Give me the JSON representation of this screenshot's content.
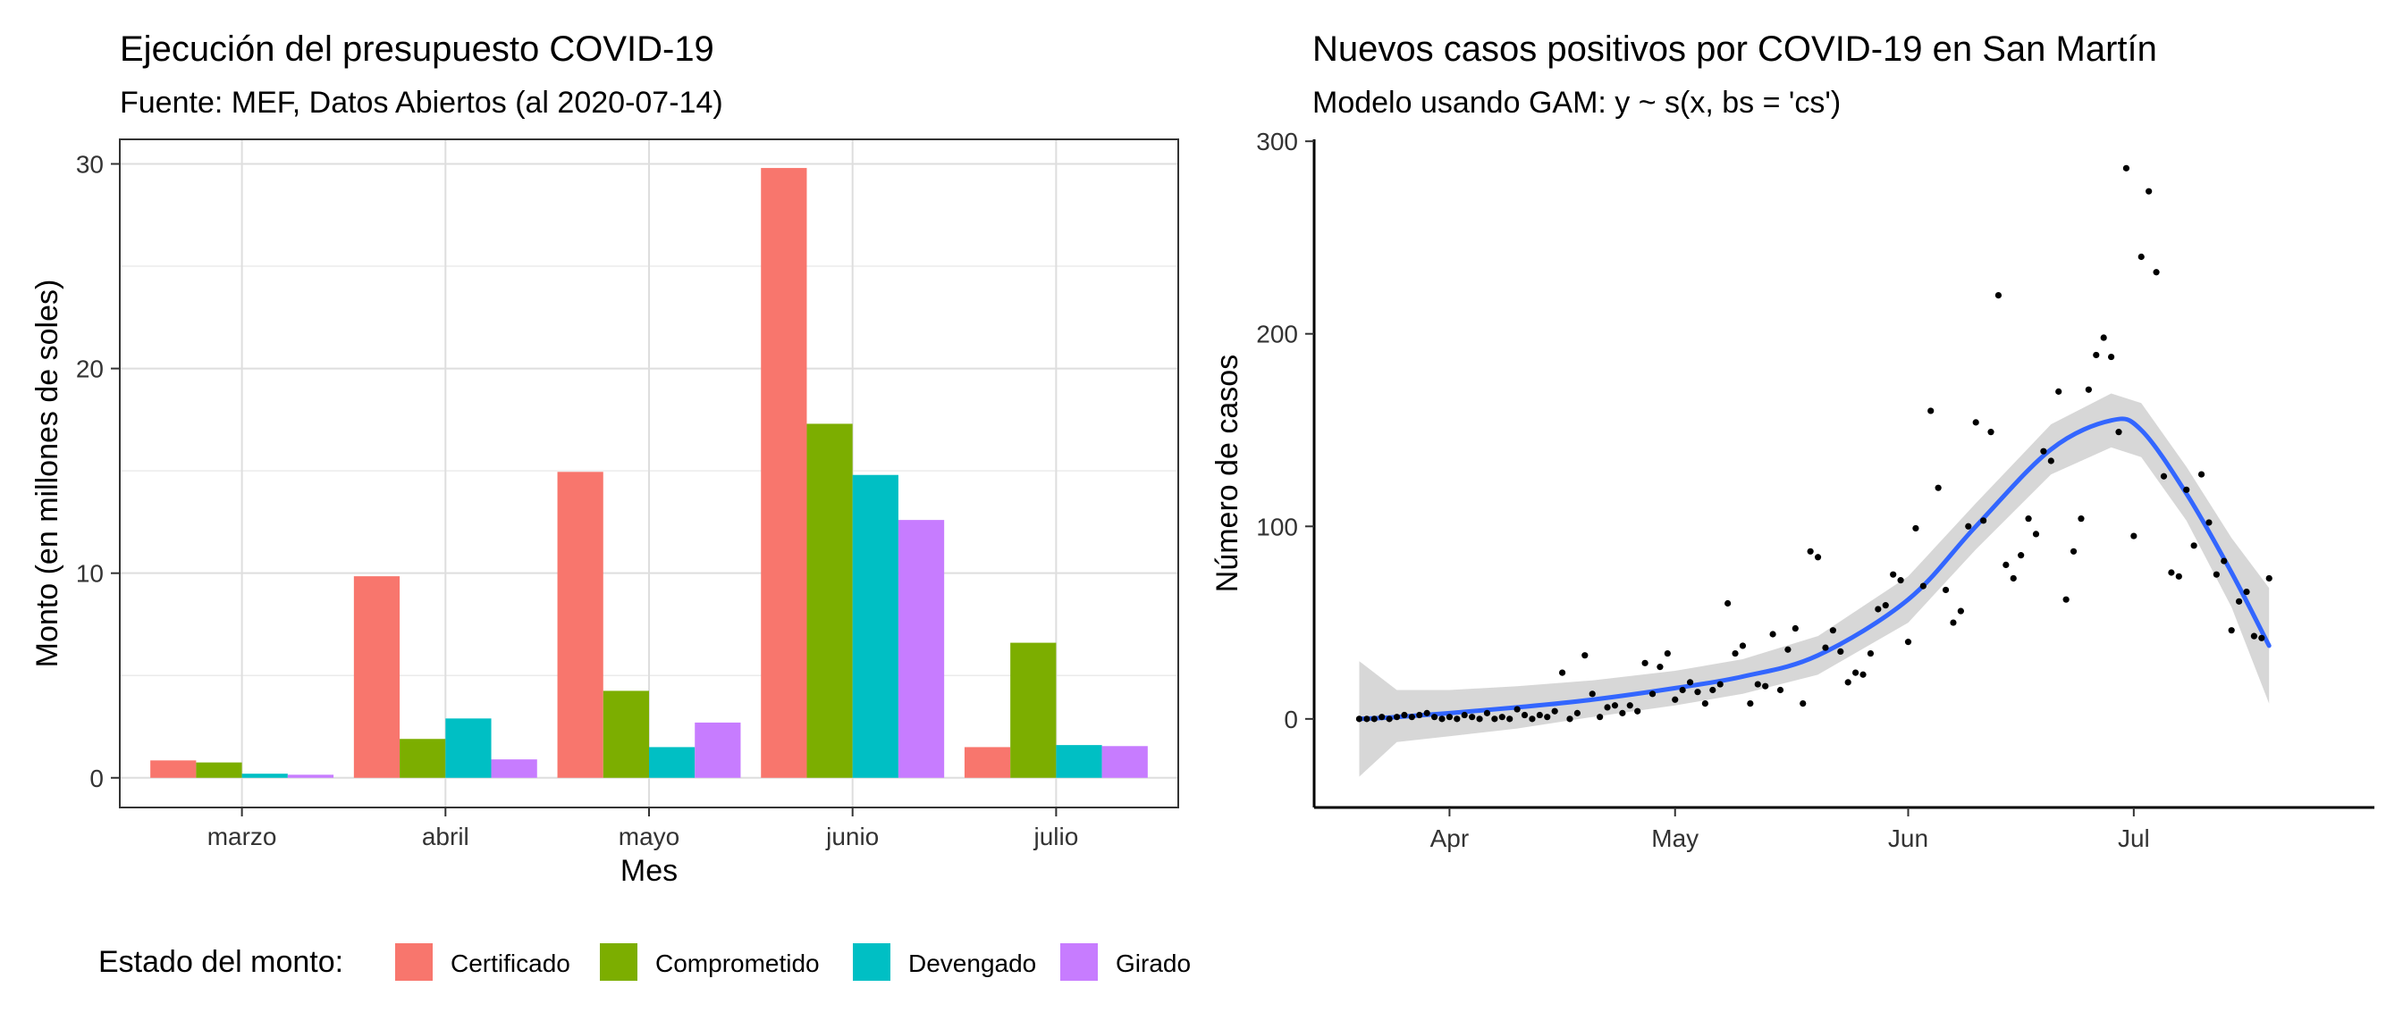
{
  "chart_data": [
    {
      "type": "bar",
      "title": "Ejecución del presupuesto COVID-19",
      "subtitle": "Fuente: MEF, Datos Abiertos (al 2020-07-14)",
      "xlabel": "Mes",
      "ylabel": "Monto (en millones de soles)",
      "categories": [
        "marzo",
        "abril",
        "mayo",
        "junio",
        "julio"
      ],
      "series": [
        {
          "name": "Certificado",
          "color": "#F8766D",
          "values": [
            0.85,
            9.85,
            14.95,
            29.8,
            1.5
          ]
        },
        {
          "name": "Comprometido",
          "color": "#7CAE00",
          "values": [
            0.75,
            1.9,
            4.25,
            17.3,
            6.6
          ]
        },
        {
          "name": "Devengado",
          "color": "#00BFC4",
          "values": [
            0.2,
            2.9,
            1.5,
            14.8,
            1.6
          ]
        },
        {
          "name": "Girado",
          "color": "#C77CFF",
          "values": [
            0.15,
            0.9,
            2.7,
            12.6,
            1.55
          ]
        }
      ],
      "ylim": [
        -1.45,
        31.2
      ],
      "yticks": [
        0,
        10,
        20,
        30
      ],
      "grid": true,
      "legend_position": "bottom",
      "legend_title": "Estado del monto:"
    },
    {
      "type": "scatter",
      "title": "Nuevos casos positivos por COVID-19 en San Martín",
      "subtitle": "Modelo usando GAM: y ~ s(x, bs = 'cs')",
      "xlabel": "",
      "ylabel": "Número de casos",
      "x_tick_labels": [
        "Apr",
        "May",
        "Jun",
        "Jul"
      ],
      "x_tick_dates": [
        "2020-04-01",
        "2020-05-01",
        "2020-06-01",
        "2020-07-01"
      ],
      "xlim": [
        "2020-03-14",
        "2020-08-02"
      ],
      "ylim": [
        -46,
        301
      ],
      "yticks": [
        0,
        100,
        200,
        300
      ],
      "grid": false,
      "points": [
        {
          "x": "2020-03-20",
          "y": 0
        },
        {
          "x": "2020-03-21",
          "y": 0
        },
        {
          "x": "2020-03-22",
          "y": 0
        },
        {
          "x": "2020-03-23",
          "y": 1
        },
        {
          "x": "2020-03-24",
          "y": 0
        },
        {
          "x": "2020-03-25",
          "y": 1
        },
        {
          "x": "2020-03-26",
          "y": 2
        },
        {
          "x": "2020-03-27",
          "y": 1
        },
        {
          "x": "2020-03-28",
          "y": 2
        },
        {
          "x": "2020-03-29",
          "y": 3
        },
        {
          "x": "2020-03-30",
          "y": 1
        },
        {
          "x": "2020-03-31",
          "y": 0
        },
        {
          "x": "2020-04-01",
          "y": 1
        },
        {
          "x": "2020-04-02",
          "y": 0
        },
        {
          "x": "2020-04-03",
          "y": 2
        },
        {
          "x": "2020-04-04",
          "y": 1
        },
        {
          "x": "2020-04-05",
          "y": 0
        },
        {
          "x": "2020-04-06",
          "y": 3
        },
        {
          "x": "2020-04-07",
          "y": 0
        },
        {
          "x": "2020-04-08",
          "y": 1
        },
        {
          "x": "2020-04-09",
          "y": 0
        },
        {
          "x": "2020-04-10",
          "y": 5
        },
        {
          "x": "2020-04-11",
          "y": 2
        },
        {
          "x": "2020-04-12",
          "y": 0
        },
        {
          "x": "2020-04-13",
          "y": 2
        },
        {
          "x": "2020-04-14",
          "y": 1
        },
        {
          "x": "2020-04-15",
          "y": 4
        },
        {
          "x": "2020-04-16",
          "y": 24
        },
        {
          "x": "2020-04-17",
          "y": 0
        },
        {
          "x": "2020-04-18",
          "y": 3
        },
        {
          "x": "2020-04-19",
          "y": 33
        },
        {
          "x": "2020-04-20",
          "y": 13
        },
        {
          "x": "2020-04-21",
          "y": 1
        },
        {
          "x": "2020-04-22",
          "y": 6
        },
        {
          "x": "2020-04-23",
          "y": 7
        },
        {
          "x": "2020-04-24",
          "y": 3
        },
        {
          "x": "2020-04-25",
          "y": 7
        },
        {
          "x": "2020-04-26",
          "y": 4
        },
        {
          "x": "2020-04-27",
          "y": 29
        },
        {
          "x": "2020-04-28",
          "y": 13
        },
        {
          "x": "2020-04-29",
          "y": 27
        },
        {
          "x": "2020-04-30",
          "y": 34
        },
        {
          "x": "2020-05-01",
          "y": 10
        },
        {
          "x": "2020-05-02",
          "y": 15
        },
        {
          "x": "2020-05-03",
          "y": 19
        },
        {
          "x": "2020-05-04",
          "y": 14
        },
        {
          "x": "2020-05-05",
          "y": 8
        },
        {
          "x": "2020-05-06",
          "y": 15
        },
        {
          "x": "2020-05-07",
          "y": 18
        },
        {
          "x": "2020-05-08",
          "y": 60
        },
        {
          "x": "2020-05-09",
          "y": 34
        },
        {
          "x": "2020-05-10",
          "y": 38
        },
        {
          "x": "2020-05-11",
          "y": 8
        },
        {
          "x": "2020-05-12",
          "y": 18
        },
        {
          "x": "2020-05-13",
          "y": 17
        },
        {
          "x": "2020-05-14",
          "y": 44
        },
        {
          "x": "2020-05-15",
          "y": 15
        },
        {
          "x": "2020-05-16",
          "y": 36
        },
        {
          "x": "2020-05-17",
          "y": 47
        },
        {
          "x": "2020-05-18",
          "y": 8
        },
        {
          "x": "2020-05-19",
          "y": 87
        },
        {
          "x": "2020-05-20",
          "y": 84
        },
        {
          "x": "2020-05-21",
          "y": 37
        },
        {
          "x": "2020-05-22",
          "y": 46
        },
        {
          "x": "2020-05-23",
          "y": 35
        },
        {
          "x": "2020-05-24",
          "y": 19
        },
        {
          "x": "2020-05-25",
          "y": 24
        },
        {
          "x": "2020-05-26",
          "y": 23
        },
        {
          "x": "2020-05-27",
          "y": 34
        },
        {
          "x": "2020-05-28",
          "y": 57
        },
        {
          "x": "2020-05-29",
          "y": 59
        },
        {
          "x": "2020-05-30",
          "y": 75
        },
        {
          "x": "2020-05-31",
          "y": 72
        },
        {
          "x": "2020-06-01",
          "y": 40
        },
        {
          "x": "2020-06-02",
          "y": 99
        },
        {
          "x": "2020-06-03",
          "y": 69
        },
        {
          "x": "2020-06-04",
          "y": 160
        },
        {
          "x": "2020-06-05",
          "y": 120
        },
        {
          "x": "2020-06-06",
          "y": 67
        },
        {
          "x": "2020-06-07",
          "y": 50
        },
        {
          "x": "2020-06-08",
          "y": 56
        },
        {
          "x": "2020-06-09",
          "y": 100
        },
        {
          "x": "2020-06-10",
          "y": 154
        },
        {
          "x": "2020-06-11",
          "y": 103
        },
        {
          "x": "2020-06-12",
          "y": 149
        },
        {
          "x": "2020-06-13",
          "y": 220
        },
        {
          "x": "2020-06-14",
          "y": 80
        },
        {
          "x": "2020-06-15",
          "y": 73
        },
        {
          "x": "2020-06-16",
          "y": 85
        },
        {
          "x": "2020-06-17",
          "y": 104
        },
        {
          "x": "2020-06-18",
          "y": 96
        },
        {
          "x": "2020-06-19",
          "y": 139
        },
        {
          "x": "2020-06-20",
          "y": 134
        },
        {
          "x": "2020-06-21",
          "y": 170
        },
        {
          "x": "2020-06-22",
          "y": 62
        },
        {
          "x": "2020-06-23",
          "y": 87
        },
        {
          "x": "2020-06-24",
          "y": 104
        },
        {
          "x": "2020-06-25",
          "y": 171
        },
        {
          "x": "2020-06-26",
          "y": 189
        },
        {
          "x": "2020-06-27",
          "y": 198
        },
        {
          "x": "2020-06-28",
          "y": 188
        },
        {
          "x": "2020-06-29",
          "y": 149
        },
        {
          "x": "2020-06-30",
          "y": 286
        },
        {
          "x": "2020-07-01",
          "y": 95
        },
        {
          "x": "2020-07-02",
          "y": 240
        },
        {
          "x": "2020-07-03",
          "y": 274
        },
        {
          "x": "2020-07-04",
          "y": 232
        },
        {
          "x": "2020-07-05",
          "y": 126
        },
        {
          "x": "2020-07-06",
          "y": 76
        },
        {
          "x": "2020-07-07",
          "y": 74
        },
        {
          "x": "2020-07-08",
          "y": 119
        },
        {
          "x": "2020-07-09",
          "y": 90
        },
        {
          "x": "2020-07-10",
          "y": 127
        },
        {
          "x": "2020-07-11",
          "y": 102
        },
        {
          "x": "2020-07-12",
          "y": 75
        },
        {
          "x": "2020-07-13",
          "y": 82
        },
        {
          "x": "2020-07-14",
          "y": 46
        },
        {
          "x": "2020-07-15",
          "y": 61
        },
        {
          "x": "2020-07-16",
          "y": 66
        },
        {
          "x": "2020-07-17",
          "y": 43
        },
        {
          "x": "2020-07-18",
          "y": 42
        },
        {
          "x": "2020-07-19",
          "y": 73
        }
      ],
      "smooth_line": {
        "color": "#3366FF",
        "ribbon_color": "#D3D3D3",
        "points": [
          {
            "x": "2020-03-20",
            "y": 0,
            "lo": -30,
            "hi": 30
          },
          {
            "x": "2020-03-25",
            "y": 1,
            "lo": -12,
            "hi": 15
          },
          {
            "x": "2020-04-01",
            "y": 3,
            "lo": -9,
            "hi": 15
          },
          {
            "x": "2020-04-10",
            "y": 6,
            "lo": -5,
            "hi": 17
          },
          {
            "x": "2020-04-20",
            "y": 10,
            "lo": 1,
            "hi": 20
          },
          {
            "x": "2020-05-01",
            "y": 16,
            "lo": 7,
            "hi": 25
          },
          {
            "x": "2020-05-10",
            "y": 22,
            "lo": 13,
            "hi": 31
          },
          {
            "x": "2020-05-20",
            "y": 33,
            "lo": 23,
            "hi": 43
          },
          {
            "x": "2020-06-01",
            "y": 62,
            "lo": 50,
            "hi": 74
          },
          {
            "x": "2020-06-10",
            "y": 100,
            "lo": 88,
            "hi": 112
          },
          {
            "x": "2020-06-20",
            "y": 140,
            "lo": 127,
            "hi": 153
          },
          {
            "x": "2020-06-28",
            "y": 155,
            "lo": 141,
            "hi": 169
          },
          {
            "x": "2020-07-02",
            "y": 150,
            "lo": 136,
            "hi": 164
          },
          {
            "x": "2020-07-08",
            "y": 117,
            "lo": 103,
            "hi": 131
          },
          {
            "x": "2020-07-14",
            "y": 76,
            "lo": 58,
            "hi": 94
          },
          {
            "x": "2020-07-19",
            "y": 38,
            "lo": 8,
            "hi": 68
          }
        ]
      }
    }
  ]
}
